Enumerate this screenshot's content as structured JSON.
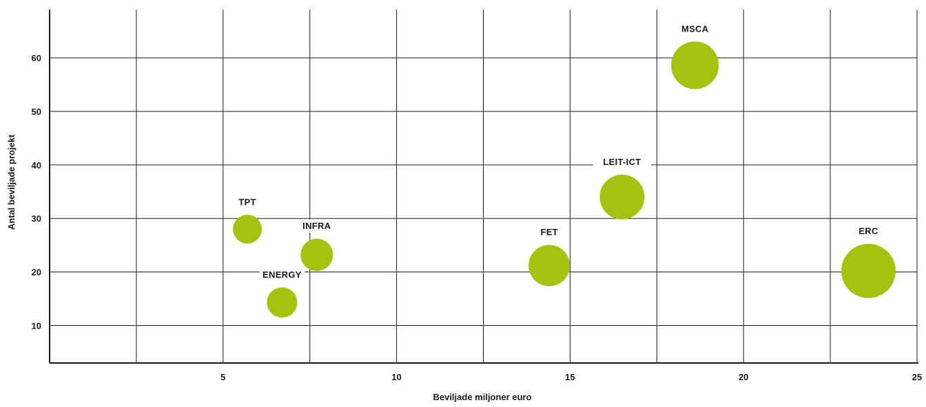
{
  "chart_data": {
    "type": "scatter",
    "variant": "bubble",
    "title": "",
    "xlabel": "Beviljade miljoner euro",
    "ylabel": "Antal beviljade projekt",
    "xlim": [
      0,
      25
    ],
    "ylim": [
      3,
      69
    ],
    "x_ticks": [
      5,
      10,
      15,
      20,
      25
    ],
    "y_ticks": [
      10,
      20,
      30,
      40,
      50,
      60
    ],
    "x_tick_labels": [
      "5",
      "10",
      "15",
      "20",
      "25"
    ],
    "y_tick_labels": [
      "10",
      "20",
      "30",
      "40",
      "50",
      "60"
    ],
    "x_gridlines": [
      2.5,
      5,
      7.5,
      10,
      12.5,
      15,
      17.5,
      20,
      22.5,
      25
    ],
    "y_gridlines": [
      10,
      20,
      30,
      40,
      50,
      60
    ],
    "grid": true,
    "legend": "none",
    "bubble_color": "#a6c20f",
    "grid_color": "#1a1a1a",
    "points": [
      {
        "label": "TPT",
        "x": 5.7,
        "y": 28,
        "size": 1.0
      },
      {
        "label": "INFRA",
        "x": 7.7,
        "y": 23.2,
        "size": 1.12
      },
      {
        "label": "ENERGY",
        "x": 6.7,
        "y": 14.3,
        "size": 1.05
      },
      {
        "label": "FET",
        "x": 14.4,
        "y": 21.2,
        "size": 1.43
      },
      {
        "label": "LEIT-ICT",
        "x": 16.5,
        "y": 34,
        "size": 1.55
      },
      {
        "label": "MSCA",
        "x": 18.6,
        "y": 58.6,
        "size": 1.65
      },
      {
        "label": "ERC",
        "x": 23.6,
        "y": 20.2,
        "size": 1.88
      }
    ]
  }
}
